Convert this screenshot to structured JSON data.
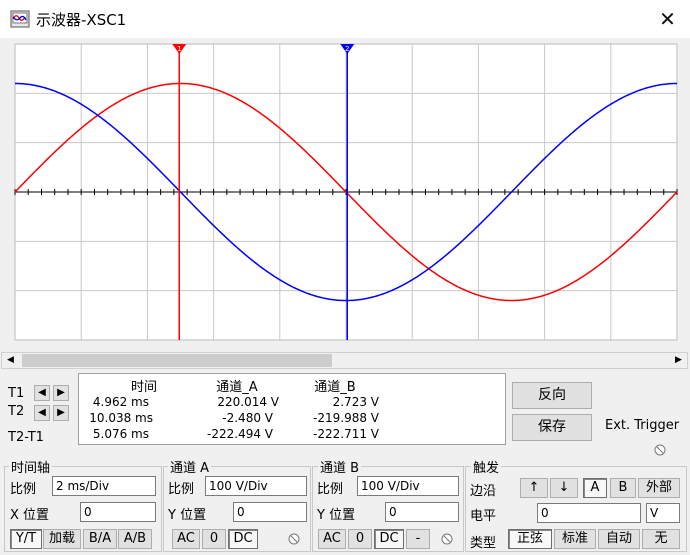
{
  "window": {
    "title": "示波器-XSC1",
    "close_glyph": "✕"
  },
  "icons": {
    "app": "oscilloscope-icon",
    "close": "close-icon"
  },
  "scope": {
    "background": "#ffffff",
    "grid_color": "#c8c8c8",
    "trace_a_color": "#ff0000",
    "trace_b_color": "#0000ff",
    "cursor_t1_color": "#ff0000",
    "cursor_t2_color": "#0000ff",
    "cursor_t1_label": "1",
    "cursor_t2_label": "2"
  },
  "chart_data": {
    "type": "line",
    "xlabel": "",
    "ylabel": "",
    "xlim_ms": [
      0,
      20
    ],
    "ylim_div": [
      -3,
      3
    ],
    "grid": true,
    "series": [
      {
        "channel": "A",
        "color": "#ff0000",
        "shape": "sine",
        "points": [
          [
            0,
            0
          ],
          [
            2.5,
            1.55
          ],
          [
            5,
            2.2
          ],
          [
            7.5,
            1.55
          ],
          [
            10,
            0
          ],
          [
            12.5,
            -1.55
          ],
          [
            15,
            -2.2
          ],
          [
            17.5,
            -1.55
          ],
          [
            20,
            0
          ]
        ]
      },
      {
        "channel": "B",
        "color": "#0000ff",
        "shape": "cosine",
        "points": [
          [
            0,
            2.2
          ],
          [
            2.5,
            1.55
          ],
          [
            5,
            0
          ],
          [
            7.5,
            -1.55
          ],
          [
            10,
            -2.2
          ],
          [
            12.5,
            -1.55
          ],
          [
            15,
            0
          ],
          [
            17.5,
            1.55
          ],
          [
            20,
            2.2
          ]
        ]
      }
    ],
    "cursors": [
      {
        "name": "T1",
        "t_ms": 4.962
      },
      {
        "name": "T2",
        "t_ms": 10.038
      }
    ]
  },
  "readout": {
    "row_labels": [
      "T1",
      "T2",
      "T2-T1"
    ],
    "headers": {
      "time": "时间",
      "cha": "通道_A",
      "chb": "通道_B"
    },
    "rows": [
      {
        "time": "4.962 ms",
        "cha": "220.014 V",
        "chb": "2.723 V"
      },
      {
        "time": "10.038 ms",
        "cha": "-2.480 V",
        "chb": "-219.988 V"
      },
      {
        "time": "5.076 ms",
        "cha": "-222.494 V",
        "chb": "-222.711 V"
      }
    ]
  },
  "buttons": {
    "reverse": "反向",
    "save": "保存",
    "ext_trigger": "Ext. Trigger"
  },
  "timebase": {
    "title": "时间轴",
    "scale_label": "比例",
    "scale_value": "2 ms/Div",
    "xpos_label": "X 位置",
    "xpos_value": "0",
    "modes": [
      "Y/T",
      "加载",
      "B/A",
      "A/B"
    ]
  },
  "channel_a": {
    "title": "通道 A",
    "scale_label": "比例",
    "scale_value": "100  V/Div",
    "ypos_label": "Y 位置",
    "ypos_value": "0",
    "coupling": [
      "AC",
      "0",
      "DC"
    ]
  },
  "channel_b": {
    "title": "通道 B",
    "scale_label": "比例",
    "scale_value": "100  V/Div",
    "ypos_label": "Y 位置",
    "ypos_value": "0",
    "coupling": [
      "AC",
      "0",
      "DC",
      "-"
    ]
  },
  "trigger": {
    "title": "触发",
    "edge_label": "边沿",
    "edge_rise": "↑",
    "edge_fall": "↓",
    "sources": [
      "A",
      "B",
      "外部"
    ],
    "level_label": "电平",
    "level_value": "0",
    "level_unit": "V",
    "type_label": "类型",
    "types": [
      "正弦",
      "标准",
      "自动",
      "无"
    ]
  }
}
